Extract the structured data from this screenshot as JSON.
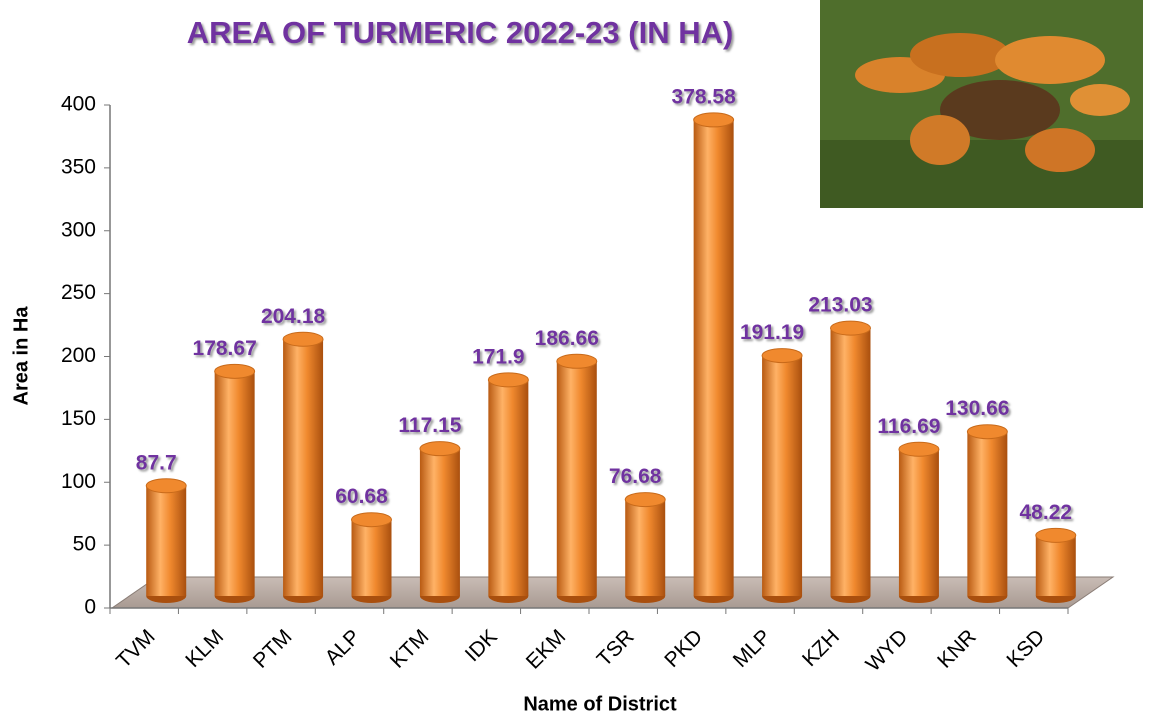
{
  "chart_data": {
    "type": "bar",
    "title": "AREA OF TURMERIC 2022-23 (IN HA)",
    "x_label": "Name of District",
    "y_label": "Area in Ha",
    "categories": [
      "TVM",
      "KLM",
      "PTM",
      "ALP",
      "KTM",
      "IDK",
      "EKM",
      "TSR",
      "PKD",
      "MLP",
      "KZH",
      "WYD",
      "KNR",
      "KSD"
    ],
    "values": [
      87.7,
      178.67,
      204.18,
      60.68,
      117.15,
      171.9,
      186.66,
      76.68,
      378.58,
      191.19,
      213.03,
      116.69,
      130.66,
      48.22
    ],
    "color": "#f0892e",
    "ylim": [
      0,
      400
    ],
    "yticks": [
      0,
      50,
      100,
      150,
      200,
      250,
      300,
      350,
      400
    ]
  }
}
